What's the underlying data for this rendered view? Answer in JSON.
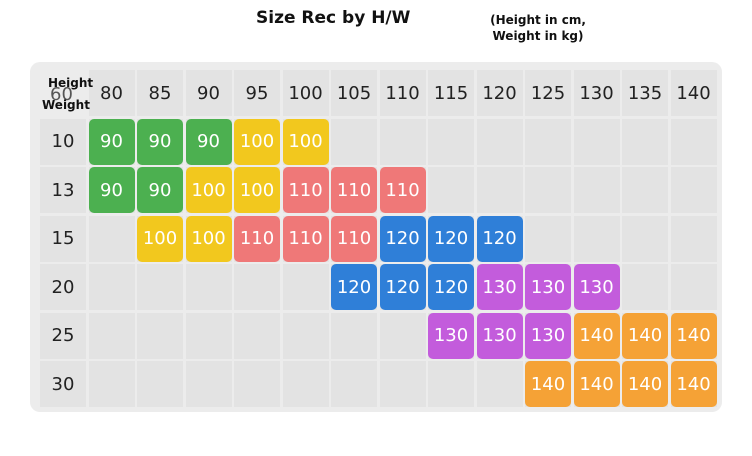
{
  "title": "Size Rec by H/W",
  "subtitle_line1": "(Height in cm,",
  "subtitle_line2": "Weight in kg)",
  "corner": {
    "height_label": "Height",
    "weight_label": "Weight",
    "partial_value": "60"
  },
  "heights": [
    "80",
    "85",
    "90",
    "95",
    "100",
    "105",
    "110",
    "115",
    "120",
    "125",
    "130",
    "135",
    "140"
  ],
  "weights": [
    "10",
    "13",
    "15",
    "20",
    "25",
    "30"
  ],
  "colors": {
    "90": "#4cb050",
    "100": "#f2c81e",
    "110": "#ef7878",
    "120": "#2f7fd8",
    "130": "#c35cdc",
    "140": "#f5a236"
  },
  "rows": [
    {
      "weight": "10",
      "sizes": [
        "90",
        "90",
        "90",
        "100",
        "100",
        "",
        "",
        "",
        "",
        "",
        "",
        "",
        ""
      ]
    },
    {
      "weight": "13",
      "sizes": [
        "90",
        "90",
        "100",
        "100",
        "110",
        "110",
        "110",
        "",
        "",
        "",
        "",
        "",
        ""
      ]
    },
    {
      "weight": "15",
      "sizes": [
        "",
        "100",
        "100",
        "110",
        "110",
        "110",
        "120",
        "120",
        "120",
        "",
        "",
        "",
        ""
      ]
    },
    {
      "weight": "20",
      "sizes": [
        "",
        "",
        "",
        "",
        "",
        "120",
        "120",
        "120",
        "130",
        "130",
        "130",
        "",
        ""
      ]
    },
    {
      "weight": "25",
      "sizes": [
        "",
        "",
        "",
        "",
        "",
        "",
        "",
        "130",
        "130",
        "130",
        "140",
        "140",
        "140"
      ]
    },
    {
      "weight": "30",
      "sizes": [
        "",
        "",
        "",
        "",
        "",
        "",
        "",
        "",
        "",
        "140",
        "140",
        "140",
        "140"
      ]
    }
  ]
}
